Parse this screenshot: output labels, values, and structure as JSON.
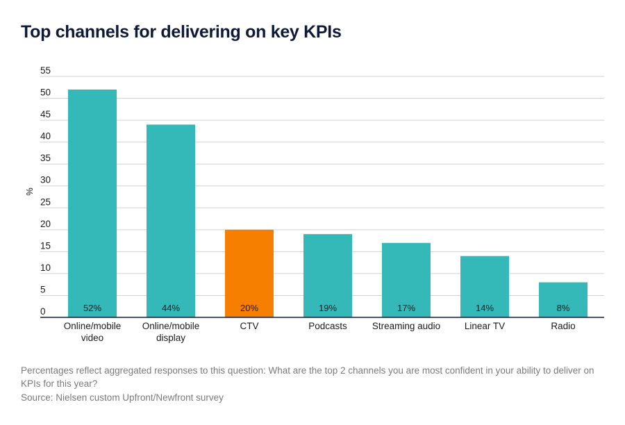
{
  "chart_data": {
    "type": "bar",
    "title": "Top channels for delivering on key KPIs",
    "ylabel": "%",
    "xlabel": "",
    "ylim": [
      0,
      55
    ],
    "yticks": [
      0,
      5,
      10,
      15,
      20,
      25,
      30,
      35,
      40,
      45,
      50,
      55
    ],
    "grid": true,
    "categories": [
      [
        "Online/mobile",
        "video"
      ],
      [
        "Online/mobile",
        "display"
      ],
      [
        "CTV"
      ],
      [
        "Podcasts"
      ],
      [
        "Streaming audio"
      ],
      [
        "Linear TV"
      ],
      [
        "Radio"
      ]
    ],
    "values": [
      52,
      44,
      20,
      19,
      17,
      14,
      8
    ],
    "data_labels": [
      "52%",
      "44%",
      "20%",
      "19%",
      "17%",
      "14%",
      "8%"
    ],
    "colors": [
      "#34b9b8",
      "#34b9b8",
      "#f77f00",
      "#34b9b8",
      "#34b9b8",
      "#34b9b8",
      "#34b9b8"
    ]
  },
  "footnote": "Percentages reflect aggregated responses to this question: What are the top 2 channels you are most confident in your ability to deliver on KPIs for this year?",
  "source": "Source: Nielsen custom Upfront/Newfront survey",
  "colors": {
    "title": "#0f1a3a",
    "grid": "#d0d0d0",
    "baseline": "#0f1a3a",
    "note": "#7a7a7a"
  }
}
